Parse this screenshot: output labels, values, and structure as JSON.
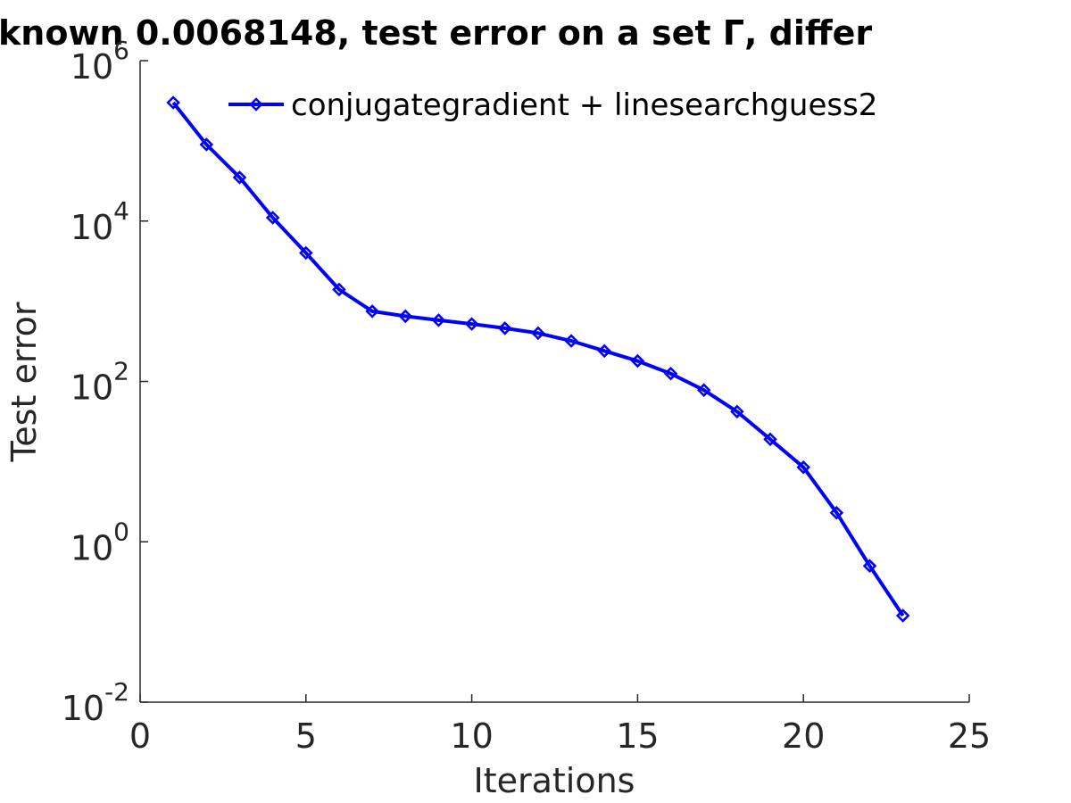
{
  "chart_data": {
    "type": "line",
    "title": "known 0.0068148, test error on a set  Γ, differ",
    "xlabel": "Iterations",
    "ylabel": "Test error",
    "xlim": [
      0,
      25
    ],
    "ylim": [
      0.01,
      1000000
    ],
    "yscale": "log",
    "grid": false,
    "legend_position": "top-right",
    "x_ticks": [
      0,
      5,
      10,
      15,
      20,
      25
    ],
    "x_tick_labels": [
      "0",
      "5",
      "10",
      "15",
      "20",
      "25"
    ],
    "y_ticks": [
      0.01,
      1,
      100,
      10000,
      1000000
    ],
    "y_tick_labels": [
      {
        "base": "10",
        "exp": "-2"
      },
      {
        "base": "10",
        "exp": "0"
      },
      {
        "base": "10",
        "exp": "2"
      },
      {
        "base": "10",
        "exp": "4"
      },
      {
        "base": "10",
        "exp": "6"
      }
    ],
    "series": [
      {
        "name": "conjugategradient + linesearchguess2",
        "color": "#0000ff",
        "marker": "diamond",
        "x": [
          1,
          2,
          3,
          4,
          5,
          6,
          7,
          8,
          9,
          10,
          11,
          12,
          13,
          14,
          15,
          16,
          17,
          18,
          19,
          20,
          21,
          22,
          23
        ],
        "y": [
          300000,
          90000,
          35000,
          11000,
          4000,
          1400,
          750,
          650,
          580,
          520,
          460,
          400,
          320,
          240,
          180,
          125,
          78,
          42,
          19,
          8.5,
          2.3,
          0.5,
          0.12
        ]
      }
    ]
  }
}
